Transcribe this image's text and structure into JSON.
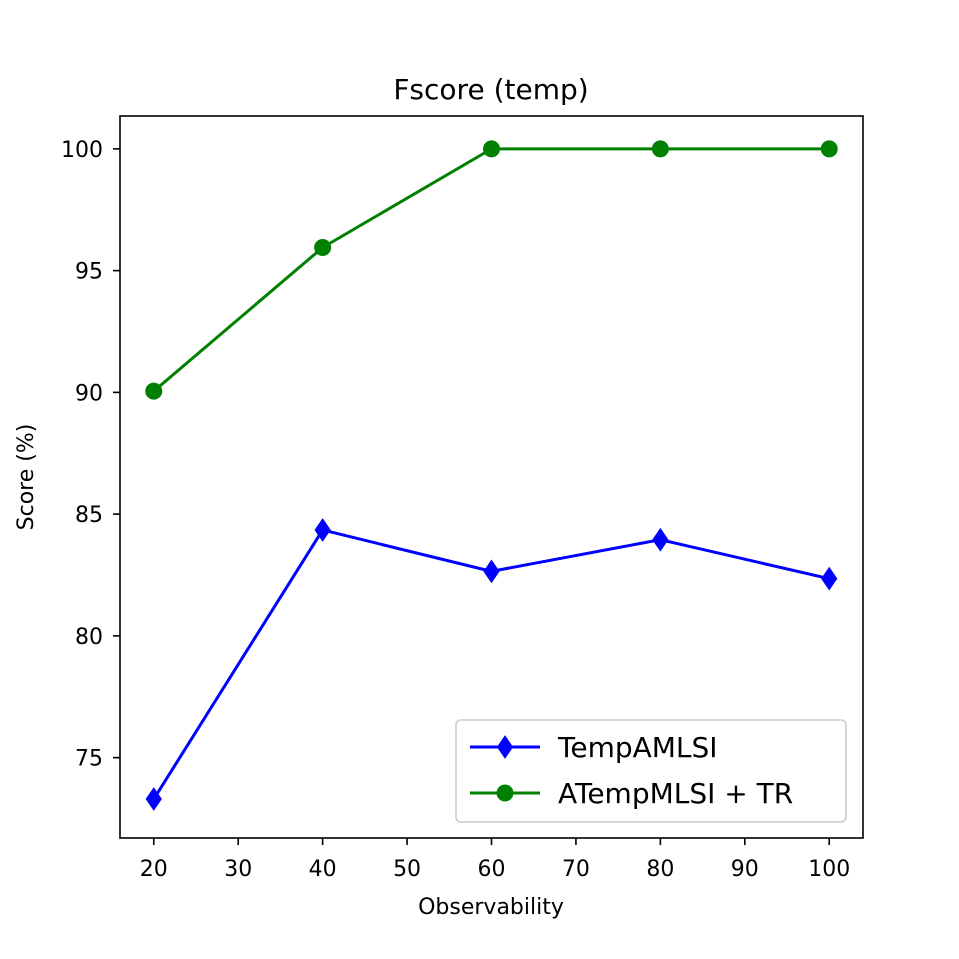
{
  "chart_data": {
    "type": "line",
    "title": "Fscore (temp)",
    "xlabel": "Observability",
    "ylabel": "Score (%)",
    "xlim": [
      16,
      104
    ],
    "ylim": [
      71.7,
      101.35
    ],
    "xticks": [
      20,
      30,
      40,
      50,
      60,
      70,
      80,
      90,
      100
    ],
    "yticks": [
      75,
      80,
      85,
      90,
      95,
      100
    ],
    "grid": false,
    "legend_position": "lower-right",
    "series": [
      {
        "name": "TempAMLSI",
        "color": "#0000ff",
        "marker": "diamond",
        "x": [
          20,
          40,
          60,
          80,
          100
        ],
        "y": [
          73.3,
          84.35,
          82.65,
          83.95,
          82.35
        ]
      },
      {
        "name": "ATempMLSI + TR",
        "color": "#008000",
        "marker": "circle",
        "x": [
          20,
          40,
          60,
          80,
          100
        ],
        "y": [
          90.05,
          95.95,
          100,
          100,
          100
        ]
      }
    ]
  }
}
